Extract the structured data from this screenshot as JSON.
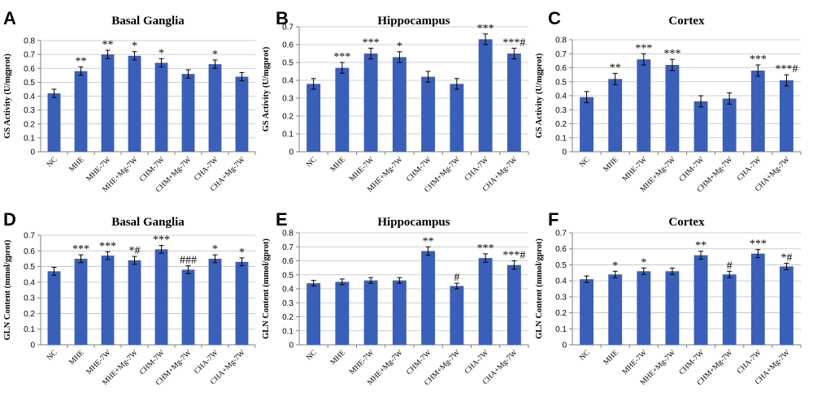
{
  "chart_data": [
    {
      "panel": "A",
      "type": "bar",
      "title": "Basal Ganglia",
      "ylabel": "GS Activity (U/mgprot)",
      "ylim": [
        0,
        0.8
      ],
      "yticks": [
        0,
        0.1,
        0.2,
        0.3,
        0.4,
        0.5,
        0.6,
        0.7,
        0.8
      ],
      "categories": [
        "NC",
        "MHE",
        "MHE-7W",
        "MHE+Mg-7W",
        "CHM-7W",
        "CHM+Mg-7W",
        "CHA-7W",
        "CHA+Mg-7W"
      ],
      "values": [
        0.42,
        0.58,
        0.7,
        0.69,
        0.64,
        0.56,
        0.63,
        0.54
      ],
      "errors": [
        0.03,
        0.03,
        0.03,
        0.03,
        0.03,
        0.03,
        0.03,
        0.03
      ],
      "annotations": [
        "",
        "**",
        "**",
        "*",
        "*",
        "",
        "*",
        ""
      ],
      "color": "#3a5fb8"
    },
    {
      "panel": "B",
      "type": "bar",
      "title": "Hippocampus",
      "ylabel": "GS Activity (U/mgprot)",
      "ylim": [
        0,
        0.7
      ],
      "yticks": [
        0,
        0.1,
        0.2,
        0.3,
        0.4,
        0.5,
        0.6,
        0.7
      ],
      "categories": [
        "NC",
        "MHE",
        "MHE-7W",
        "MHE+Mg-7W",
        "CHM-7W",
        "CHM+Mg-7W",
        "CHA-7W",
        "CHA+Mg-7W"
      ],
      "values": [
        0.38,
        0.47,
        0.55,
        0.53,
        0.42,
        0.38,
        0.63,
        0.55
      ],
      "errors": [
        0.03,
        0.03,
        0.03,
        0.03,
        0.03,
        0.03,
        0.03,
        0.03
      ],
      "annotations": [
        "",
        "***",
        "***",
        "*",
        "",
        "",
        "***",
        "***#"
      ],
      "color": "#3a5fb8"
    },
    {
      "panel": "C",
      "type": "bar",
      "title": "Cortex",
      "ylabel": "GS Activity (U/mgprot)",
      "ylim": [
        0,
        0.8
      ],
      "yticks": [
        0,
        0.1,
        0.2,
        0.3,
        0.4,
        0.5,
        0.6,
        0.7,
        0.8
      ],
      "categories": [
        "NC",
        "MHE",
        "MHE-7W",
        "MHE+Mg-7W",
        "CHM-7W",
        "CHM+Mg-7W",
        "CHA-7W",
        "CHA+Mg-7W"
      ],
      "values": [
        0.39,
        0.52,
        0.66,
        0.62,
        0.36,
        0.38,
        0.58,
        0.51
      ],
      "errors": [
        0.04,
        0.04,
        0.04,
        0.04,
        0.04,
        0.04,
        0.04,
        0.04
      ],
      "annotations": [
        "",
        "**",
        "***",
        "***",
        "",
        "",
        "***",
        "***#"
      ],
      "color": "#3a5fb8"
    },
    {
      "panel": "D",
      "type": "bar",
      "title": "Basal Ganglia",
      "ylabel": "GLN Content (mmol/gprot)",
      "ylim": [
        0,
        0.7
      ],
      "yticks": [
        0,
        0.1,
        0.2,
        0.3,
        0.4,
        0.5,
        0.6,
        0.7
      ],
      "categories": [
        "NC",
        "MHE",
        "MHE-7W",
        "MHE+Mg-7W",
        "CHM-7W",
        "CHM+Mg-7W",
        "CHA-7W",
        "CHA+Mg-7W"
      ],
      "values": [
        0.47,
        0.55,
        0.57,
        0.54,
        0.61,
        0.48,
        0.55,
        0.53
      ],
      "errors": [
        0.025,
        0.025,
        0.025,
        0.025,
        0.025,
        0.025,
        0.025,
        0.025
      ],
      "annotations": [
        "",
        "***",
        "***",
        "*#",
        "***",
        "###",
        "*",
        "*"
      ],
      "color": "#3a5fb8"
    },
    {
      "panel": "E",
      "type": "bar",
      "title": "Hippocampus",
      "ylabel": "GLN Content (mmol/gprot)",
      "ylim": [
        0,
        0.8
      ],
      "yticks": [
        0,
        0.1,
        0.2,
        0.3,
        0.4,
        0.5,
        0.6,
        0.7,
        0.8
      ],
      "categories": [
        "NC",
        "MHE",
        "MHE-7W",
        "MHE+Mg-7W",
        "CHM-7W",
        "CHM+Mg-7W",
        "CHA-7W",
        "CHA+Mg-7W"
      ],
      "values": [
        0.44,
        0.45,
        0.46,
        0.46,
        0.67,
        0.42,
        0.62,
        0.57
      ],
      "errors": [
        0.02,
        0.02,
        0.02,
        0.02,
        0.03,
        0.02,
        0.03,
        0.03
      ],
      "annotations": [
        "",
        "",
        "",
        "",
        "**",
        "#",
        "***",
        "***#"
      ],
      "color": "#3a5fb8"
    },
    {
      "panel": "F",
      "type": "bar",
      "title": "Cortex",
      "ylabel": "GLN Content (mmol/gprot)",
      "ylim": [
        0,
        0.7
      ],
      "yticks": [
        0,
        0.1,
        0.2,
        0.3,
        0.4,
        0.5,
        0.6,
        0.7
      ],
      "categories": [
        "NC",
        "MHE",
        "MHE-7W",
        "MHE+Mg-7W",
        "CHM-7W",
        "CHM+Mg-7W",
        "CHA-7W",
        "CHA+Mg-7W"
      ],
      "values": [
        0.41,
        0.44,
        0.46,
        0.46,
        0.56,
        0.44,
        0.57,
        0.49
      ],
      "errors": [
        0.02,
        0.02,
        0.02,
        0.02,
        0.025,
        0.02,
        0.025,
        0.02
      ],
      "annotations": [
        "",
        "*",
        "*",
        "",
        "**",
        "#",
        "***",
        "*#"
      ],
      "color": "#3a5fb8"
    }
  ]
}
